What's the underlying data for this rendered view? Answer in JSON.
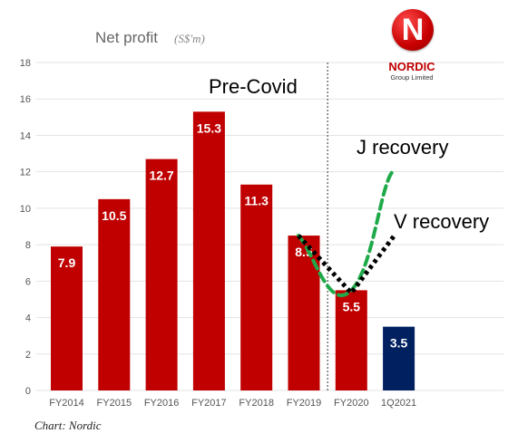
{
  "title": "Net profit",
  "unit": "(S$'m)",
  "logo": {
    "icon": "nordic-n-logo-icon",
    "name": "NORDIC",
    "sub": "Group Limited"
  },
  "annotations": {
    "pre_covid": "Pre-Covid",
    "j_recovery": "J recovery",
    "v_recovery": "V recovery"
  },
  "caption": "Chart: Nordic",
  "colors": {
    "bar": "#c00000",
    "bar_highlight": "#002060",
    "j_line": "#1faa4a",
    "v_line": "#000000",
    "label": "#ffffff"
  },
  "chart_data": {
    "type": "bar",
    "title": "Net profit",
    "ylabel": "",
    "xlabel": "",
    "ylim": [
      0,
      18
    ],
    "yticks": [
      0,
      2,
      4,
      6,
      8,
      10,
      12,
      14,
      16,
      18
    ],
    "grid": true,
    "categories": [
      "FY2014",
      "FY2015",
      "FY2016",
      "FY2017",
      "FY2018",
      "FY2019",
      "FY2020",
      "1Q2021"
    ],
    "values": [
      7.9,
      10.5,
      12.7,
      15.3,
      11.3,
      8.5,
      5.5,
      3.5
    ],
    "labels": [
      "7.9",
      "10.5",
      "12.7",
      "15.3",
      "11.3",
      "8.5",
      "5.5",
      "3.5"
    ],
    "divider_between": [
      "FY2019",
      "FY2020"
    ],
    "overlays": [
      {
        "name": "J recovery",
        "style": "dashed",
        "points": [
          [
            "FY2019",
            8.5
          ],
          [
            "FY2020",
            5.5
          ],
          [
            "1Q2021",
            12.1
          ]
        ]
      },
      {
        "name": "V recovery",
        "style": "dotted",
        "points": [
          [
            "FY2019",
            8.5
          ],
          [
            "FY2020",
            5.5
          ],
          [
            "1Q2021",
            8.5
          ]
        ]
      }
    ]
  }
}
